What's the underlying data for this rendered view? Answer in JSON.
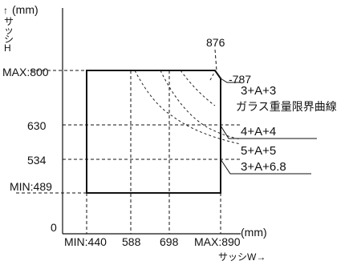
{
  "y_axis": {
    "unit": "(mm)",
    "arrow": "↑",
    "label_chars": [
      "サ",
      "ッ",
      "シ",
      "H"
    ],
    "ticks": [
      "MAX:800",
      "630",
      "534",
      "MIN:489"
    ],
    "zero": "0"
  },
  "x_axis": {
    "unit": "(mm)",
    "label": "サッシW→",
    "ticks": [
      "MIN:440",
      "588",
      "698",
      "MAX:890"
    ],
    "top_mark": "876"
  },
  "right_labels": {
    "mark_787": "-787",
    "combo_1": "3+A+3",
    "limit_curve": "ガラス重量限界曲線",
    "combo_2": "4+A+4",
    "combo_3": "5+A+5",
    "combo_4": "3+A+6.8"
  },
  "region": {
    "w_min": 440,
    "w_max": 890,
    "h_min": 489,
    "h_max": 800,
    "corner_cut": {
      "w": 876,
      "h": 787
    }
  }
}
